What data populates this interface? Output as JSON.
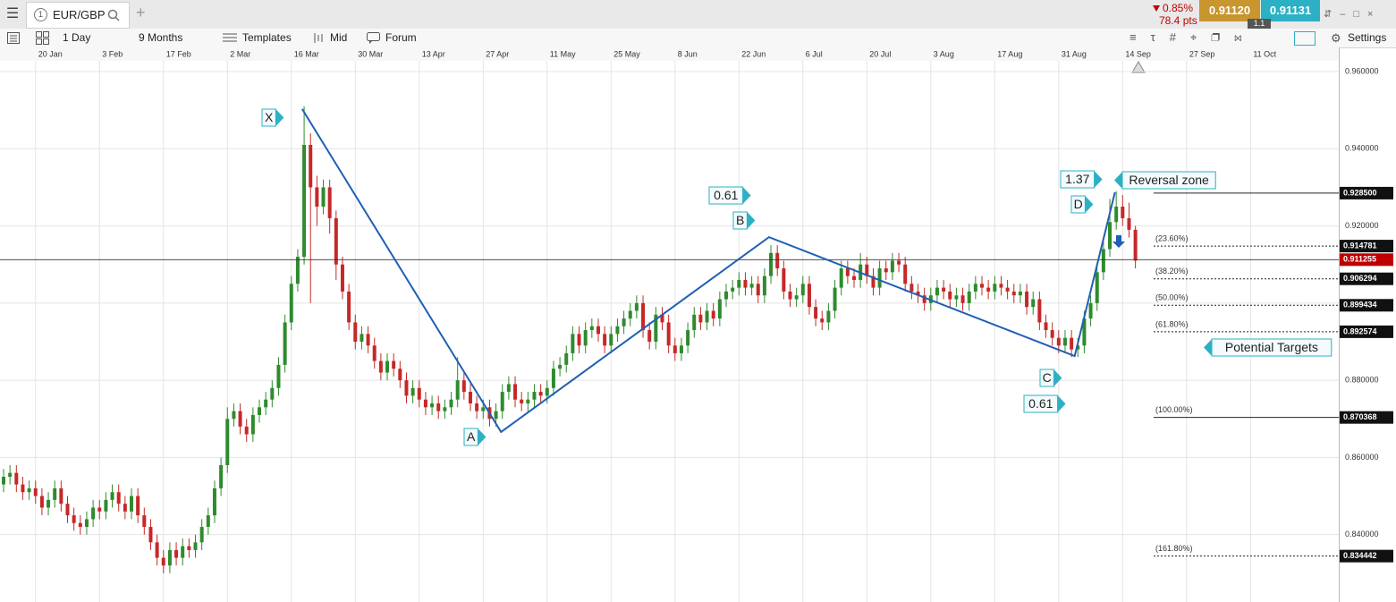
{
  "toolbar": {
    "tab_number": "1",
    "symbol": "EUR/GBP",
    "change": "0.85%",
    "points": "78.4 pts",
    "sell": "0.91120",
    "spread": "1.1",
    "buy": "0.91131",
    "interval": "1 Day",
    "range": "9 Months",
    "templates": "Templates",
    "price_type": "Mid",
    "forum": "Forum",
    "settings": "Settings"
  },
  "chart_data": {
    "type": "candlestick",
    "up_color": "#2e8b2e",
    "down_color": "#c62828",
    "grid": true,
    "xlim": [
      -0.56,
      208.8
    ],
    "ylim": [
      0.8237,
      0.9658
    ],
    "xticks": [
      {
        "value": 5,
        "label": "20 Jan"
      },
      {
        "value": 15,
        "label": "3 Feb"
      },
      {
        "value": 25,
        "label": "17 Feb"
      },
      {
        "value": 35,
        "label": "2 Mar"
      },
      {
        "value": 45,
        "label": "16 Mar"
      },
      {
        "value": 55,
        "label": "30 Mar"
      },
      {
        "value": 65,
        "label": "13 Apr"
      },
      {
        "value": 75,
        "label": "27 Apr"
      },
      {
        "value": 85,
        "label": "11 May"
      },
      {
        "value": 95,
        "label": "25 May"
      },
      {
        "value": 105,
        "label": "8 Jun"
      },
      {
        "value": 115,
        "label": "22 Jun"
      },
      {
        "value": 125,
        "label": "6 Jul"
      },
      {
        "value": 135,
        "label": "20 Jul"
      },
      {
        "value": 145,
        "label": "3 Aug"
      },
      {
        "value": 155,
        "label": "17 Aug"
      },
      {
        "value": 165,
        "label": "31 Aug"
      },
      {
        "value": 175,
        "label": "14 Sep"
      },
      {
        "value": 185,
        "label": "27 Sep"
      },
      {
        "value": 195,
        "label": "11 Oct"
      }
    ],
    "yticks": [
      {
        "value": 0.96,
        "label": "0.960000"
      },
      {
        "value": 0.94,
        "label": "0.940000"
      },
      {
        "value": 0.92,
        "label": "0.920000"
      },
      {
        "value": 0.9,
        "label": "0.900000"
      },
      {
        "value": 0.88,
        "label": "0.880000"
      },
      {
        "value": 0.86,
        "label": "0.860000"
      },
      {
        "value": 0.84,
        "label": "0.840000"
      }
    ],
    "candles": [
      [
        0.853,
        0.857,
        0.851,
        0.855
      ],
      [
        0.855,
        0.858,
        0.853,
        0.856
      ],
      [
        0.856,
        0.858,
        0.851,
        0.853
      ],
      [
        0.853,
        0.855,
        0.849,
        0.851
      ],
      [
        0.851,
        0.854,
        0.849,
        0.852
      ],
      [
        0.852,
        0.854,
        0.848,
        0.85
      ],
      [
        0.85,
        0.852,
        0.845,
        0.847
      ],
      [
        0.847,
        0.851,
        0.845,
        0.849
      ],
      [
        0.849,
        0.854,
        0.847,
        0.852
      ],
      [
        0.852,
        0.854,
        0.846,
        0.848
      ],
      [
        0.848,
        0.85,
        0.843,
        0.845
      ],
      [
        0.845,
        0.847,
        0.841,
        0.843
      ],
      [
        0.843,
        0.845,
        0.84,
        0.842
      ],
      [
        0.842,
        0.846,
        0.84,
        0.844
      ],
      [
        0.844,
        0.849,
        0.842,
        0.847
      ],
      [
        0.847,
        0.849,
        0.844,
        0.846
      ],
      [
        0.846,
        0.851,
        0.844,
        0.849
      ],
      [
        0.849,
        0.853,
        0.847,
        0.851
      ],
      [
        0.851,
        0.853,
        0.846,
        0.848
      ],
      [
        0.848,
        0.85,
        0.844,
        0.846
      ],
      [
        0.846,
        0.852,
        0.844,
        0.85
      ],
      [
        0.85,
        0.852,
        0.843,
        0.845
      ],
      [
        0.845,
        0.847,
        0.84,
        0.842
      ],
      [
        0.842,
        0.844,
        0.836,
        0.838
      ],
      [
        0.838,
        0.84,
        0.832,
        0.834
      ],
      [
        0.834,
        0.836,
        0.83,
        0.832
      ],
      [
        0.832,
        0.838,
        0.83,
        0.836
      ],
      [
        0.836,
        0.838,
        0.832,
        0.834
      ],
      [
        0.834,
        0.839,
        0.832,
        0.837
      ],
      [
        0.837,
        0.839,
        0.834,
        0.836
      ],
      [
        0.836,
        0.84,
        0.834,
        0.838
      ],
      [
        0.838,
        0.844,
        0.836,
        0.842
      ],
      [
        0.842,
        0.847,
        0.84,
        0.845
      ],
      [
        0.845,
        0.854,
        0.843,
        0.852
      ],
      [
        0.852,
        0.86,
        0.85,
        0.858
      ],
      [
        0.858,
        0.873,
        0.856,
        0.87
      ],
      [
        0.87,
        0.874,
        0.868,
        0.872
      ],
      [
        0.872,
        0.874,
        0.866,
        0.868
      ],
      [
        0.868,
        0.87,
        0.864,
        0.866
      ],
      [
        0.866,
        0.873,
        0.864,
        0.871
      ],
      [
        0.871,
        0.875,
        0.869,
        0.873
      ],
      [
        0.873,
        0.877,
        0.871,
        0.875
      ],
      [
        0.875,
        0.88,
        0.873,
        0.878
      ],
      [
        0.878,
        0.886,
        0.876,
        0.884
      ],
      [
        0.884,
        0.897,
        0.882,
        0.895
      ],
      [
        0.895,
        0.907,
        0.893,
        0.905
      ],
      [
        0.905,
        0.914,
        0.903,
        0.912
      ],
      [
        0.912,
        0.951,
        0.91,
        0.941
      ],
      [
        0.941,
        0.944,
        0.9,
        0.93
      ],
      [
        0.93,
        0.933,
        0.92,
        0.925
      ],
      [
        0.925,
        0.932,
        0.923,
        0.93
      ],
      [
        0.93,
        0.932,
        0.918,
        0.922
      ],
      [
        0.922,
        0.924,
        0.906,
        0.91
      ],
      [
        0.91,
        0.912,
        0.901,
        0.903
      ],
      [
        0.903,
        0.905,
        0.893,
        0.895
      ],
      [
        0.895,
        0.897,
        0.888,
        0.89
      ],
      [
        0.89,
        0.894,
        0.888,
        0.892
      ],
      [
        0.892,
        0.894,
        0.887,
        0.889
      ],
      [
        0.889,
        0.891,
        0.883,
        0.885
      ],
      [
        0.885,
        0.887,
        0.88,
        0.882
      ],
      [
        0.882,
        0.887,
        0.88,
        0.885
      ],
      [
        0.885,
        0.887,
        0.881,
        0.883
      ],
      [
        0.883,
        0.885,
        0.878,
        0.88
      ],
      [
        0.88,
        0.882,
        0.874,
        0.876
      ],
      [
        0.876,
        0.88,
        0.874,
        0.878
      ],
      [
        0.878,
        0.88,
        0.873,
        0.875
      ],
      [
        0.875,
        0.877,
        0.871,
        0.873
      ],
      [
        0.873,
        0.876,
        0.871,
        0.874
      ],
      [
        0.874,
        0.876,
        0.87,
        0.872
      ],
      [
        0.872,
        0.875,
        0.87,
        0.873
      ],
      [
        0.873,
        0.877,
        0.871,
        0.875
      ],
      [
        0.875,
        0.886,
        0.873,
        0.88
      ],
      [
        0.88,
        0.882,
        0.875,
        0.877
      ],
      [
        0.877,
        0.879,
        0.872,
        0.874
      ],
      [
        0.874,
        0.876,
        0.87,
        0.872
      ],
      [
        0.872,
        0.875,
        0.87,
        0.873
      ],
      [
        0.873,
        0.875,
        0.868,
        0.87
      ],
      [
        0.87,
        0.874,
        0.868,
        0.872
      ],
      [
        0.872,
        0.879,
        0.87,
        0.877
      ],
      [
        0.877,
        0.881,
        0.875,
        0.879
      ],
      [
        0.879,
        0.881,
        0.873,
        0.875
      ],
      [
        0.875,
        0.877,
        0.872,
        0.874
      ],
      [
        0.874,
        0.877,
        0.872,
        0.875
      ],
      [
        0.875,
        0.879,
        0.873,
        0.877
      ],
      [
        0.877,
        0.879,
        0.874,
        0.876
      ],
      [
        0.876,
        0.88,
        0.874,
        0.878
      ],
      [
        0.878,
        0.885,
        0.876,
        0.883
      ],
      [
        0.883,
        0.886,
        0.881,
        0.884
      ],
      [
        0.884,
        0.889,
        0.882,
        0.887
      ],
      [
        0.887,
        0.894,
        0.885,
        0.892
      ],
      [
        0.892,
        0.894,
        0.887,
        0.889
      ],
      [
        0.889,
        0.895,
        0.887,
        0.893
      ],
      [
        0.893,
        0.896,
        0.891,
        0.894
      ],
      [
        0.894,
        0.896,
        0.89,
        0.892
      ],
      [
        0.892,
        0.894,
        0.887,
        0.889
      ],
      [
        0.889,
        0.894,
        0.887,
        0.892
      ],
      [
        0.892,
        0.896,
        0.89,
        0.894
      ],
      [
        0.894,
        0.898,
        0.892,
        0.896
      ],
      [
        0.896,
        0.9,
        0.894,
        0.898
      ],
      [
        0.898,
        0.902,
        0.896,
        0.9
      ],
      [
        0.9,
        0.902,
        0.891,
        0.893
      ],
      [
        0.893,
        0.895,
        0.888,
        0.89
      ],
      [
        0.89,
        0.899,
        0.888,
        0.897
      ],
      [
        0.897,
        0.899,
        0.893,
        0.895
      ],
      [
        0.895,
        0.897,
        0.887,
        0.889
      ],
      [
        0.889,
        0.891,
        0.885,
        0.887
      ],
      [
        0.887,
        0.891,
        0.885,
        0.889
      ],
      [
        0.889,
        0.895,
        0.887,
        0.893
      ],
      [
        0.893,
        0.899,
        0.891,
        0.897
      ],
      [
        0.897,
        0.899,
        0.893,
        0.895
      ],
      [
        0.895,
        0.9,
        0.893,
        0.898
      ],
      [
        0.898,
        0.9,
        0.894,
        0.896
      ],
      [
        0.896,
        0.903,
        0.894,
        0.901
      ],
      [
        0.901,
        0.905,
        0.899,
        0.903
      ],
      [
        0.903,
        0.906,
        0.901,
        0.904
      ],
      [
        0.904,
        0.908,
        0.902,
        0.906
      ],
      [
        0.906,
        0.908,
        0.902,
        0.904
      ],
      [
        0.904,
        0.907,
        0.902,
        0.905
      ],
      [
        0.905,
        0.907,
        0.9,
        0.902
      ],
      [
        0.902,
        0.909,
        0.9,
        0.907
      ],
      [
        0.907,
        0.915,
        0.905,
        0.913
      ],
      [
        0.913,
        0.915,
        0.907,
        0.909
      ],
      [
        0.909,
        0.911,
        0.901,
        0.903
      ],
      [
        0.903,
        0.905,
        0.899,
        0.901
      ],
      [
        0.901,
        0.904,
        0.899,
        0.902
      ],
      [
        0.902,
        0.907,
        0.9,
        0.905
      ],
      [
        0.905,
        0.907,
        0.897,
        0.899
      ],
      [
        0.899,
        0.901,
        0.894,
        0.896
      ],
      [
        0.896,
        0.898,
        0.893,
        0.895
      ],
      [
        0.895,
        0.9,
        0.893,
        0.898
      ],
      [
        0.898,
        0.906,
        0.896,
        0.904
      ],
      [
        0.904,
        0.911,
        0.902,
        0.909
      ],
      [
        0.909,
        0.911,
        0.905,
        0.907
      ],
      [
        0.907,
        0.909,
        0.904,
        0.906
      ],
      [
        0.906,
        0.913,
        0.904,
        0.91
      ],
      [
        0.91,
        0.912,
        0.905,
        0.907
      ],
      [
        0.907,
        0.909,
        0.902,
        0.904
      ],
      [
        0.904,
        0.911,
        0.902,
        0.909
      ],
      [
        0.909,
        0.911,
        0.906,
        0.908
      ],
      [
        0.908,
        0.913,
        0.906,
        0.911
      ],
      [
        0.911,
        0.913,
        0.908,
        0.91
      ],
      [
        0.91,
        0.912,
        0.903,
        0.905
      ],
      [
        0.905,
        0.907,
        0.901,
        0.903
      ],
      [
        0.903,
        0.905,
        0.9,
        0.902
      ],
      [
        0.902,
        0.904,
        0.898,
        0.9
      ],
      [
        0.9,
        0.904,
        0.898,
        0.902
      ],
      [
        0.902,
        0.906,
        0.9,
        0.904
      ],
      [
        0.904,
        0.906,
        0.901,
        0.903
      ],
      [
        0.903,
        0.905,
        0.899,
        0.901
      ],
      [
        0.901,
        0.904,
        0.899,
        0.902
      ],
      [
        0.902,
        0.904,
        0.898,
        0.9
      ],
      [
        0.9,
        0.905,
        0.898,
        0.903
      ],
      [
        0.903,
        0.907,
        0.901,
        0.905
      ],
      [
        0.905,
        0.907,
        0.902,
        0.904
      ],
      [
        0.904,
        0.906,
        0.901,
        0.903
      ],
      [
        0.903,
        0.907,
        0.901,
        0.905
      ],
      [
        0.905,
        0.907,
        0.902,
        0.904
      ],
      [
        0.904,
        0.906,
        0.901,
        0.903
      ],
      [
        0.903,
        0.905,
        0.9,
        0.902
      ],
      [
        0.902,
        0.905,
        0.9,
        0.903
      ],
      [
        0.903,
        0.905,
        0.897,
        0.899
      ],
      [
        0.899,
        0.903,
        0.897,
        0.901
      ],
      [
        0.901,
        0.903,
        0.893,
        0.895
      ],
      [
        0.895,
        0.897,
        0.891,
        0.893
      ],
      [
        0.893,
        0.895,
        0.889,
        0.891
      ],
      [
        0.891,
        0.893,
        0.887,
        0.889
      ],
      [
        0.889,
        0.893,
        0.887,
        0.891
      ],
      [
        0.891,
        0.893,
        0.886,
        0.888
      ],
      [
        0.888,
        0.891,
        0.886,
        0.889
      ],
      [
        0.889,
        0.898,
        0.887,
        0.896
      ],
      [
        0.896,
        0.902,
        0.894,
        0.9
      ],
      [
        0.9,
        0.91,
        0.898,
        0.908
      ],
      [
        0.908,
        0.916,
        0.906,
        0.914
      ],
      [
        0.914,
        0.927,
        0.912,
        0.921
      ],
      [
        0.921,
        0.929,
        0.919,
        0.925
      ],
      [
        0.925,
        0.928,
        0.92,
        0.922
      ],
      [
        0.922,
        0.926,
        0.917,
        0.919
      ],
      [
        0.919,
        0.92,
        0.909,
        0.911
      ]
    ],
    "current_price": {
      "value": 0.911255,
      "color": "#c00000"
    },
    "levels": [
      {
        "value": 0.9285,
        "price_label": "0.928500",
        "style": "solid"
      },
      {
        "value": 0.914781,
        "label": "(23.60%)",
        "style": "dotted"
      },
      {
        "value": 0.906294,
        "label": "(38.20%)",
        "style": "dotted"
      },
      {
        "value": 0.899434,
        "label": "(50.00%)",
        "style": "dotted"
      },
      {
        "value": 0.892574,
        "label": "(61.80%)",
        "style": "dotted"
      },
      {
        "value": 0.870368,
        "label": "(100.00%)",
        "style": "solid"
      },
      {
        "value": 0.834442,
        "label": "(161.80%)",
        "style": "dotted"
      }
    ],
    "pattern": {
      "color": "#1f5fb4",
      "x": [
        46.7,
        77.8,
        119.7,
        167.5,
        173.8
      ],
      "y": [
        0.9503,
        0.8666,
        0.9171,
        0.8863,
        0.9287
      ]
    },
    "annotations": [
      "X",
      "A",
      "B",
      "C",
      "D",
      "0.61",
      "1.37",
      "0.61",
      "Reversal zone",
      "Potential Targets"
    ]
  }
}
